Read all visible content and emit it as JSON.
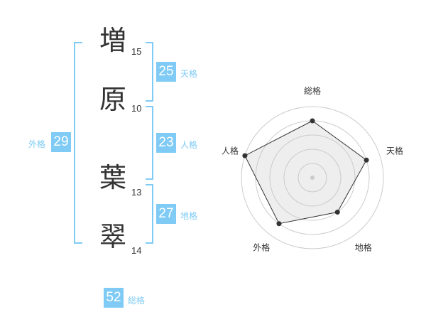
{
  "characters": [
    {
      "char": "増",
      "strokes": "15"
    },
    {
      "char": "原",
      "strokes": "10"
    },
    {
      "char": "葉",
      "strokes": "13"
    },
    {
      "char": "翠",
      "strokes": "14"
    }
  ],
  "fortunes": {
    "tenkaku": {
      "value": "25",
      "label": "天格"
    },
    "jinkaku": {
      "value": "23",
      "label": "人格"
    },
    "chikaku": {
      "value": "27",
      "label": "地格"
    },
    "gaikaku": {
      "value": "29",
      "label": "外格"
    },
    "soukaku": {
      "value": "52",
      "label": "総格"
    }
  },
  "chart_data": {
    "type": "radar",
    "axes": [
      "総格",
      "天格",
      "地格",
      "外格",
      "人格"
    ],
    "values": [
      4,
      4,
      3,
      4,
      5
    ],
    "max": 5,
    "rings": 5
  }
}
